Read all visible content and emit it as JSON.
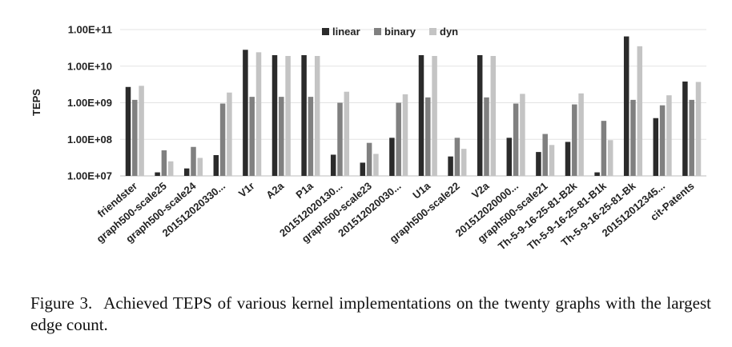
{
  "chart_data": {
    "type": "bar",
    "title": "",
    "ylabel": "TEPS",
    "xlabel": "",
    "yscale": "log",
    "ylim": [
      10000000,
      100000000000
    ],
    "yticks": [
      {
        "value": 10000000,
        "label": "1.00E+07"
      },
      {
        "value": 100000000,
        "label": "1.00E+08"
      },
      {
        "value": 1000000000,
        "label": "1.00E+09"
      },
      {
        "value": 10000000000,
        "label": "1.00E+10"
      },
      {
        "value": 100000000000,
        "label": "1.00E+11"
      }
    ],
    "legend_position": "top-center",
    "categories": [
      "friendster",
      "graph500-scale25",
      "graph500-scale24",
      "201512020330...",
      "V1r",
      "A2a",
      "P1a",
      "201512020130...",
      "graph500-scale23",
      "201512020030...",
      "U1a",
      "graph500-scale22",
      "V2a",
      "201512020000...",
      "graph500-scale21",
      "Th-5-9-16-25-81-B2k",
      "Th-5-9-16-25-81-B1k",
      "Th-5-9-16-25-81-Bk",
      "201512012345...",
      "cit-Patents"
    ],
    "series": [
      {
        "name": "linear",
        "color": "#2b2b2b",
        "values": [
          2700000000,
          12500000,
          16000000,
          37000000,
          28000000000,
          20000000000,
          20000000000,
          38000000,
          23000000,
          110000000,
          20000000000,
          34000000,
          20000000000,
          110000000,
          45000000,
          85000000,
          12500000,
          65000000000,
          380000000,
          3800000000
        ]
      },
      {
        "name": "binary",
        "color": "#808080",
        "values": [
          1200000000,
          50000000,
          62000000,
          950000000,
          1450000000,
          1450000000,
          1450000000,
          1000000000,
          80000000,
          1000000000,
          1400000000,
          110000000,
          1400000000,
          950000000,
          140000000,
          900000000,
          320000000,
          1200000000,
          850000000,
          1200000000
        ]
      },
      {
        "name": "dyn",
        "color": "#c4c4c4",
        "values": [
          2900000000,
          25000000,
          31000000,
          1900000000,
          24000000000,
          19000000000,
          19000000000,
          2000000000,
          40000000,
          1700000000,
          19000000000,
          55000000,
          19000000000,
          1750000000,
          70000000,
          1800000000,
          95000000,
          35000000000,
          1600000000,
          3700000000
        ]
      }
    ]
  },
  "caption": {
    "label": "Figure 3.",
    "text": "Achieved TEPS of various kernel implementations on the twenty graphs with the largest edge count."
  }
}
